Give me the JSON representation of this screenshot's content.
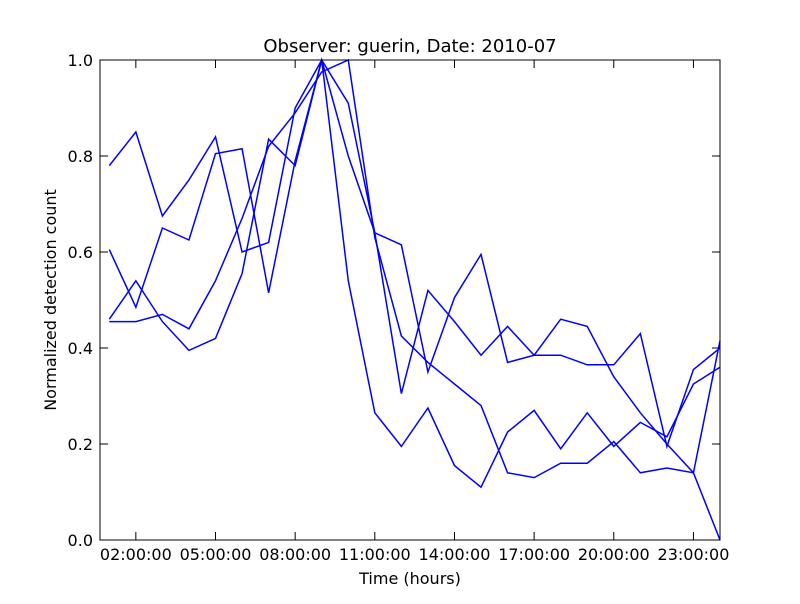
{
  "chart_data": {
    "type": "line",
    "title": "Observer: guerin, Date: 2010-07",
    "xlabel": "Time (hours)",
    "ylabel": "Normalized detection count",
    "x": [
      1,
      2,
      3,
      4,
      5,
      6,
      7,
      8,
      9,
      10,
      11,
      12,
      13,
      14,
      15,
      16,
      17,
      18,
      19,
      20,
      21,
      22,
      23,
      24
    ],
    "xlim": [
      0.65,
      24
    ],
    "ylim": [
      0.0,
      1.0
    ],
    "x_ticks": [
      2,
      5,
      8,
      11,
      14,
      17,
      20,
      23
    ],
    "x_tick_labels": [
      "02:00:00",
      "05:00:00",
      "08:00:00",
      "11:00:00",
      "14:00:00",
      "17:00:00",
      "20:00:00",
      "23:00:00"
    ],
    "y_ticks": [
      0.0,
      0.2,
      0.4,
      0.6,
      0.8,
      1.0
    ],
    "y_tick_labels": [
      "0.0",
      "0.2",
      "0.4",
      "0.6",
      "0.8",
      "1.0"
    ],
    "line_color": "#0000ff",
    "grid": false,
    "legend": "none",
    "series": [
      {
        "values": [
          0.78,
          0.85,
          0.675,
          0.75,
          0.84,
          0.6,
          0.62,
          0.9,
          1.0,
          0.91,
          0.64,
          0.305,
          0.52,
          0.455,
          0.385,
          0.445,
          0.385,
          0.385,
          0.365,
          0.365,
          0.43,
          0.195,
          0.355,
          0.4
        ]
      },
      {
        "values": [
          0.605,
          0.485,
          0.65,
          0.625,
          0.805,
          0.815,
          0.515,
          0.79,
          1.0,
          0.54,
          0.265,
          0.195,
          0.275,
          0.155,
          0.11,
          0.225,
          0.27,
          0.19,
          0.265,
          0.195,
          0.245,
          0.215,
          0.325,
          0.36
        ]
      },
      {
        "values": [
          0.46,
          0.54,
          0.455,
          0.395,
          0.42,
          0.555,
          0.835,
          0.78,
          1.0,
          0.8,
          0.64,
          0.615,
          0.35,
          0.505,
          0.595,
          0.37,
          0.385,
          0.46,
          0.445,
          0.34,
          0.265,
          0.2,
          0.14,
          0.415
        ]
      },
      {
        "values": [
          0.455,
          0.455,
          0.47,
          0.44,
          0.54,
          0.67,
          0.82,
          0.89,
          0.975,
          1.0,
          0.63,
          0.425,
          0.37,
          0.325,
          0.28,
          0.14,
          0.13,
          0.16,
          0.16,
          0.205,
          0.14,
          0.15,
          0.14,
          0.0
        ]
      }
    ]
  }
}
